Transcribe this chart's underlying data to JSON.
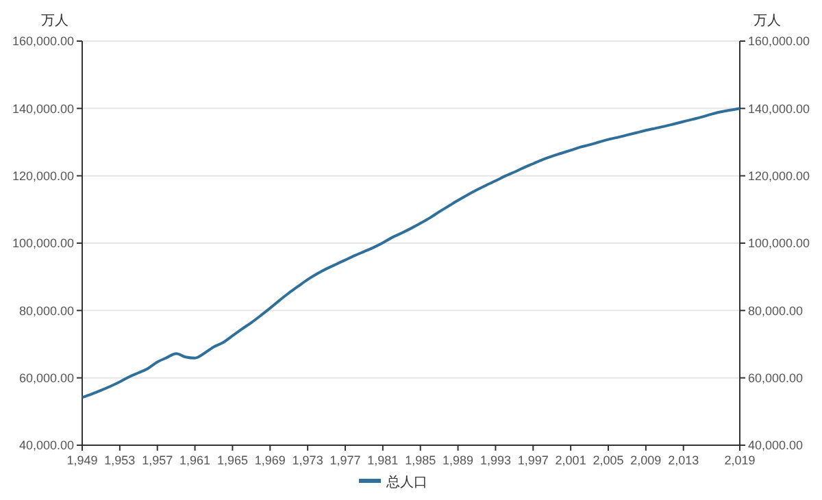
{
  "chart_data": {
    "type": "line",
    "ylabel": "万人",
    "y2label": "万人",
    "x": [
      1949,
      1950,
      1951,
      1952,
      1953,
      1954,
      1955,
      1956,
      1957,
      1958,
      1959,
      1960,
      1961,
      1962,
      1963,
      1964,
      1965,
      1966,
      1967,
      1968,
      1969,
      1970,
      1971,
      1972,
      1973,
      1974,
      1975,
      1976,
      1977,
      1978,
      1979,
      1980,
      1981,
      1982,
      1983,
      1984,
      1985,
      1986,
      1987,
      1988,
      1989,
      1990,
      1991,
      1992,
      1993,
      1994,
      1995,
      1996,
      1997,
      1998,
      1999,
      2000,
      2001,
      2002,
      2003,
      2004,
      2005,
      2006,
      2007,
      2008,
      2009,
      2010,
      2011,
      2012,
      2013,
      2014,
      2015,
      2016,
      2017,
      2018,
      2019
    ],
    "series": [
      {
        "name": "总人口",
        "color": "#2f6f99",
        "values": [
          54200,
          55200,
          56300,
          57500,
          58800,
          60300,
          61500,
          62800,
          64700,
          66000,
          67200,
          66200,
          65900,
          67300,
          69200,
          70500,
          72500,
          74500,
          76400,
          78500,
          80700,
          83000,
          85200,
          87200,
          89200,
          90900,
          92400,
          93700,
          95000,
          96300,
          97500,
          98700,
          100100,
          101700,
          103000,
          104400,
          105900,
          107500,
          109300,
          111000,
          112700,
          114300,
          115800,
          117200,
          118500,
          119900,
          121100,
          122400,
          123600,
          124800,
          125800,
          126700,
          127600,
          128500,
          129200,
          130000,
          130800,
          131400,
          132100,
          132800,
          133500,
          134100,
          134700,
          135400,
          136100,
          136800,
          137500,
          138300,
          139000,
          139500,
          140000
        ]
      }
    ],
    "xlim": [
      1949,
      2019
    ],
    "xticks": [
      {
        "value": 1949,
        "label": "1,949"
      },
      {
        "value": 1953,
        "label": "1,953"
      },
      {
        "value": 1957,
        "label": "1,957"
      },
      {
        "value": 1961,
        "label": "1,961"
      },
      {
        "value": 1965,
        "label": "1,965"
      },
      {
        "value": 1969,
        "label": "1,969"
      },
      {
        "value": 1973,
        "label": "1,973"
      },
      {
        "value": 1977,
        "label": "1,977"
      },
      {
        "value": 1981,
        "label": "1,981"
      },
      {
        "value": 1985,
        "label": "1,985"
      },
      {
        "value": 1989,
        "label": "1,989"
      },
      {
        "value": 1993,
        "label": "1,993"
      },
      {
        "value": 1997,
        "label": "1,997"
      },
      {
        "value": 2001,
        "label": "2,001"
      },
      {
        "value": 2005,
        "label": "2,005"
      },
      {
        "value": 2009,
        "label": "2,009"
      },
      {
        "value": 2013,
        "label": "2,013"
      },
      {
        "value": 2019,
        "label": "2,019"
      }
    ],
    "ylim": [
      40000,
      160000
    ],
    "yticks": [
      {
        "value": 40000,
        "label": "40,000.00"
      },
      {
        "value": 60000,
        "label": "60,000.00"
      },
      {
        "value": 80000,
        "label": "80,000.00"
      },
      {
        "value": 100000,
        "label": "100,000.00"
      },
      {
        "value": 120000,
        "label": "120,000.00"
      },
      {
        "value": 140000,
        "label": "140,000.00"
      },
      {
        "value": 160000,
        "label": "160,000.00"
      }
    ],
    "y2lim": [
      40000,
      160000
    ],
    "y2ticks": [
      {
        "value": 40000,
        "label": "40,000.00"
      },
      {
        "value": 60000,
        "label": "60,000.00"
      },
      {
        "value": 80000,
        "label": "80,000.00"
      },
      {
        "value": 100000,
        "label": "100,000.00"
      },
      {
        "value": 120000,
        "label": "120,000.00"
      },
      {
        "value": 140000,
        "label": "140,000.00"
      },
      {
        "value": 160000,
        "label": "160,000.00"
      }
    ],
    "grid": "y",
    "legend": "bottom",
    "marker": "none",
    "line_style": "solid"
  }
}
